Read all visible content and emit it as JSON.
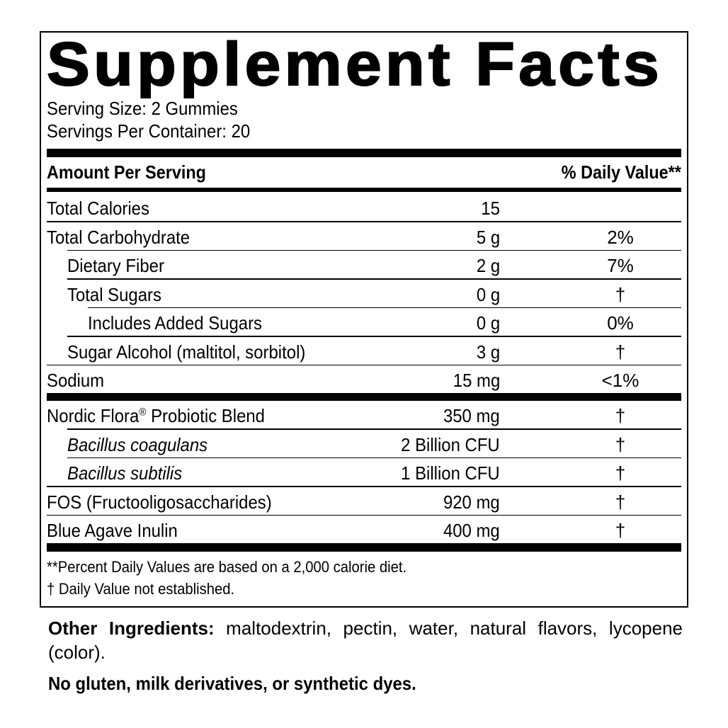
{
  "title": "Supplement Facts",
  "serving_size": "Serving Size: 2 Gummies",
  "servings_per_container": "Servings Per Container: 20",
  "header": {
    "amount": "Amount Per Serving",
    "dv": "% Daily Value**"
  },
  "rows_group1": [
    {
      "label": "Total Calories",
      "amount": "15",
      "dv": "",
      "indent": 0
    },
    {
      "label": "Total Carbohydrate",
      "amount": "5 g",
      "dv": "2%",
      "indent": 0
    },
    {
      "label": "Dietary Fiber",
      "amount": "2 g",
      "dv": "7%",
      "indent": 1
    },
    {
      "label": "Total Sugars",
      "amount": "0 g",
      "dv": "†",
      "indent": 1
    },
    {
      "label": "Includes Added Sugars",
      "amount": "0 g",
      "dv": "0%",
      "indent": 2
    },
    {
      "label": "Sugar Alcohol (maltitol, sorbitol)",
      "amount": "3 g",
      "dv": "†",
      "indent": 1
    },
    {
      "label": "Sodium",
      "amount": "15 mg",
      "dv": "<1%",
      "indent": 0
    }
  ],
  "rows_group2": [
    {
      "label": "Nordic Flora",
      "sup": "®",
      "label_after": " Probiotic Blend",
      "amount": "350 mg",
      "dv": "†",
      "indent": 0
    },
    {
      "label": "Bacillus coagulans",
      "amount": "2 Billion CFU",
      "dv": "†",
      "indent": 1,
      "italic": true
    },
    {
      "label": "Bacillus subtilis",
      "amount": "1 Billion CFU",
      "dv": "†",
      "indent": 1,
      "italic": true
    },
    {
      "label": "FOS (Fructooligosaccharides)",
      "amount": "920 mg",
      "dv": "†",
      "indent": 0
    },
    {
      "label": "Blue Agave Inulin",
      "amount": "400 mg",
      "dv": "†",
      "indent": 0
    }
  ],
  "footnotes": [
    "**Percent Daily Values are based on a 2,000 calorie diet.",
    "† Daily Value not established."
  ],
  "other_ingredients": {
    "label": "Other Ingredients:",
    "text": " maltodextrin, pectin, water, natural flavors, lycopene (color)."
  },
  "allergen_statement": "No gluten, milk derivatives, or synthetic dyes."
}
